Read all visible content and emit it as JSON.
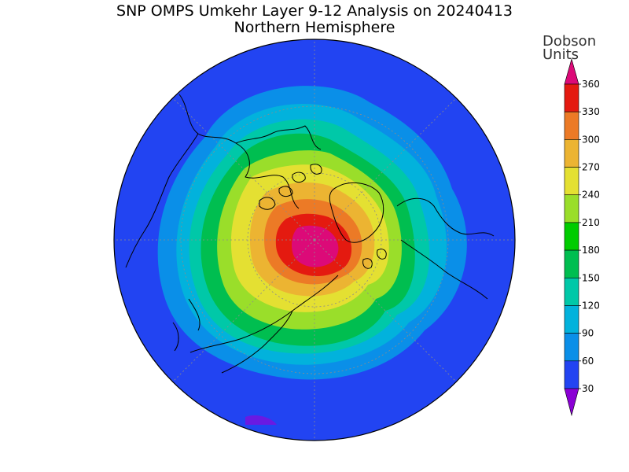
{
  "title": "SNP OMPS Umkehr Layer 9-12 Analysis on 20240413",
  "subtitle": "Northern Hemisphere",
  "colorbar": {
    "units_line1": "Dobson",
    "units_line2": "Units",
    "tick_labels": [
      "30",
      "60",
      "90",
      "120",
      "150",
      "180",
      "210",
      "240",
      "270",
      "300",
      "330",
      "360"
    ],
    "colors": [
      "#8a00d4",
      "#5a20e6",
      "#2244f2",
      "#0a8fe8",
      "#02b2dc",
      "#00c8a8",
      "#00be50",
      "#00cc00",
      "#9ade2a",
      "#e4e032",
      "#ecb432",
      "#ec7a26",
      "#e41a10",
      "#dc0a78"
    ]
  },
  "map": {
    "projection": "north-polar-stereographic",
    "field": "ozone column layer 9-12",
    "colors": {
      "land_outline": "#000000",
      "graticule": "#8c8c8c"
    }
  }
}
